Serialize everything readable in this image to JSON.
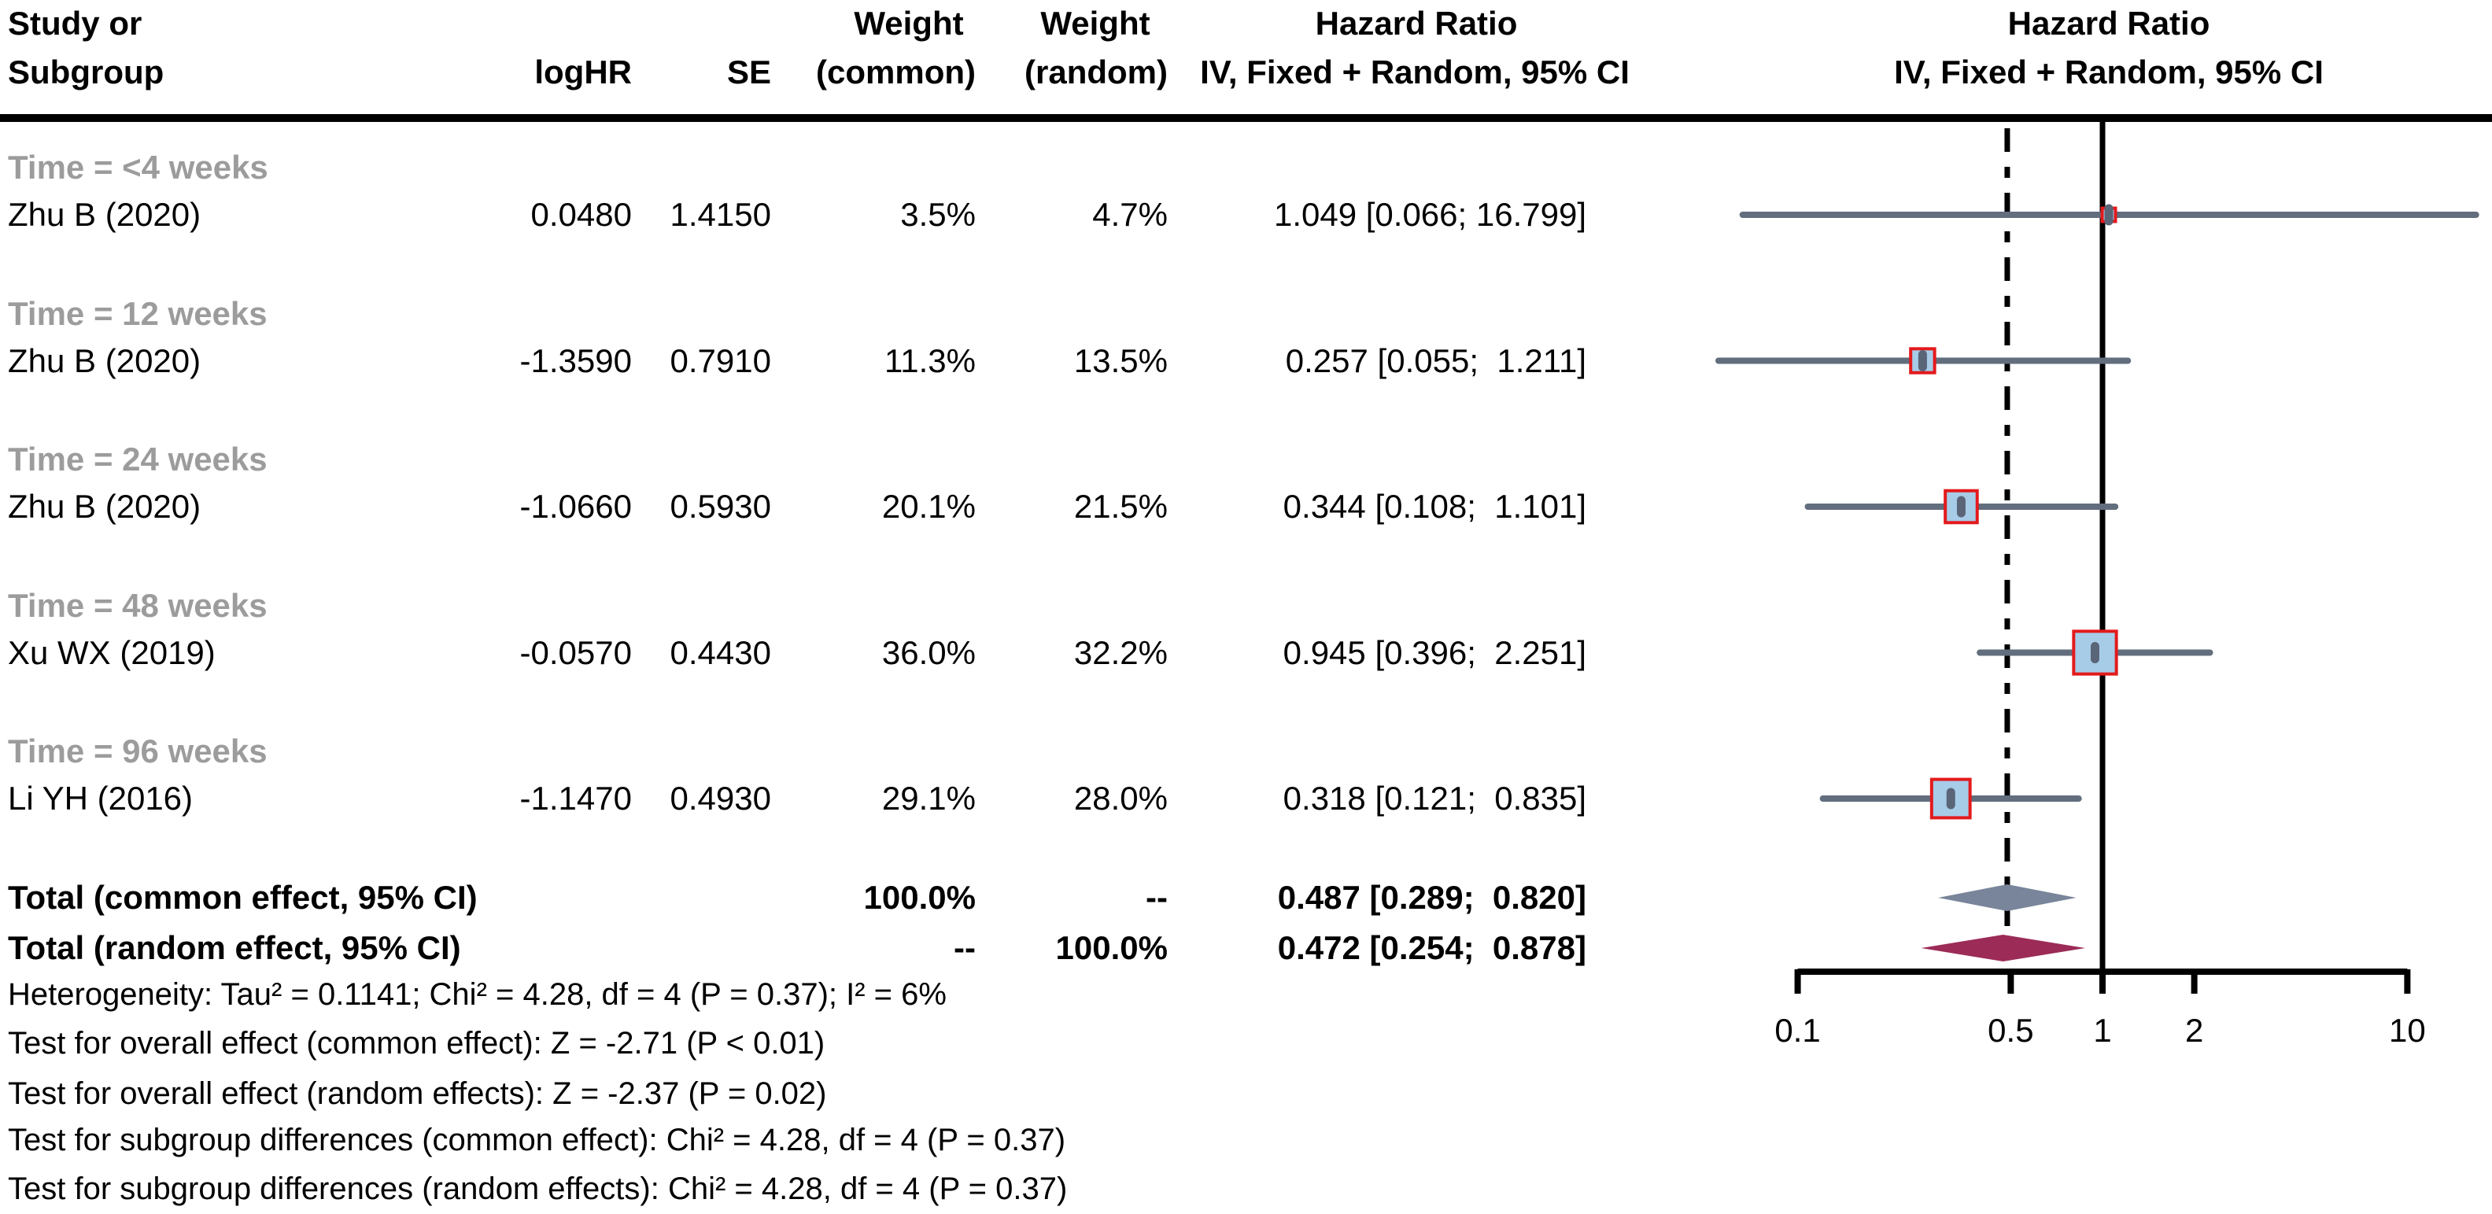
{
  "header": {
    "col_study_line1": "Study or",
    "col_study_line2": "Subgroup",
    "col_loghr": "logHR",
    "col_se": "SE",
    "col_weight_common_line1": "Weight",
    "col_weight_common_line2": "(common)",
    "col_weight_random_line1": "Weight",
    "col_weight_random_line2": "(random)",
    "col_hr_line1": "Hazard Ratio",
    "col_hr_line2": "IV, Fixed + Random, 95% CI",
    "plot_hr_line1": "Hazard Ratio",
    "plot_hr_line2": "IV, Fixed + Random, 95% CI"
  },
  "chart_data": {
    "type": "scatter",
    "subtype": "forest-plot",
    "x_scale": "log10",
    "x_ticks": [
      0.1,
      0.5,
      1,
      2,
      10
    ],
    "x_tick_labels": [
      "0.1",
      "0.5",
      "1",
      "2",
      "10"
    ],
    "x_range": [
      0.1,
      10
    ],
    "ref_line_solid": 1,
    "ref_line_dashed": 0.487,
    "studies": [
      {
        "subgroup": "Time = <4 weeks",
        "study": "Zhu B (2020)",
        "loghr": "0.0480",
        "se": "1.4150",
        "weight_common": "3.5%",
        "weight_random": "4.7%",
        "weight_common_value": 3.5,
        "hr": 1.049,
        "ci_low": 0.066,
        "ci_high": 16.799,
        "hr_text": "1.049 [0.066; 16.799]"
      },
      {
        "subgroup": "Time = 12 weeks",
        "study": "Zhu B (2020)",
        "loghr": "-1.3590",
        "se": "0.7910",
        "weight_common": "11.3%",
        "weight_random": "13.5%",
        "weight_common_value": 11.3,
        "hr": 0.257,
        "ci_low": 0.055,
        "ci_high": 1.211,
        "hr_text": "0.257 [0.055;  1.211]"
      },
      {
        "subgroup": "Time = 24 weeks",
        "study": "Zhu B (2020)",
        "loghr": "-1.0660",
        "se": "0.5930",
        "weight_common": "20.1%",
        "weight_random": "21.5%",
        "weight_common_value": 20.1,
        "hr": 0.344,
        "ci_low": 0.108,
        "ci_high": 1.101,
        "hr_text": "0.344 [0.108;  1.101]"
      },
      {
        "subgroup": "Time = 48 weeks",
        "study": "Xu WX (2019)",
        "loghr": "-0.0570",
        "se": "0.4430",
        "weight_common": "36.0%",
        "weight_random": "32.2%",
        "weight_common_value": 36.0,
        "hr": 0.945,
        "ci_low": 0.396,
        "ci_high": 2.251,
        "hr_text": "0.945 [0.396;  2.251]"
      },
      {
        "subgroup": "Time = 96 weeks",
        "study": "Li YH (2016)",
        "loghr": "-1.1470",
        "se": "0.4930",
        "weight_common": "29.1%",
        "weight_random": "28.0%",
        "weight_common_value": 29.1,
        "hr": 0.318,
        "ci_low": 0.121,
        "ci_high": 0.835,
        "hr_text": "0.318 [0.121;  0.835]"
      }
    ],
    "totals": [
      {
        "label": "Total (common effect, 95% CI)",
        "weight_common": "100.0%",
        "weight_random": "--",
        "hr": 0.487,
        "ci_low": 0.289,
        "ci_high": 0.82,
        "hr_text": "0.487 [0.289;  0.820]",
        "diamond": "common"
      },
      {
        "label": "Total (random effect, 95% CI)",
        "weight_common": "--",
        "weight_random": "100.0%",
        "hr": 0.472,
        "ci_low": 0.254,
        "ci_high": 0.878,
        "hr_text": "0.472 [0.254;  0.878]",
        "diamond": "random"
      }
    ],
    "footnotes": [
      "Heterogeneity: Tau² = 0.1141; Chi² = 4.28, df = 4 (P = 0.37); I² = 6%",
      "Test for overall effect (common effect): Z = -2.71 (P < 0.01)",
      "Test for overall effect (random effects): Z = -2.37 (P = 0.02)",
      "Test for subgroup differences (common effect): Chi² = 4.28, df = 4 (P = 0.37)",
      "Test for subgroup differences (random effects): Chi² = 4.28, df = 4 (P = 0.37)"
    ]
  },
  "colors": {
    "ci_line": "#626e7e",
    "square_fill": "#a7cce8",
    "square_border": "#e31a1c",
    "point_marker": "#5a6577",
    "diamond_common": "#78859a",
    "diamond_random": "#9c2b58",
    "subgroup_label": "#9c9c9c",
    "axis": "#000000"
  }
}
